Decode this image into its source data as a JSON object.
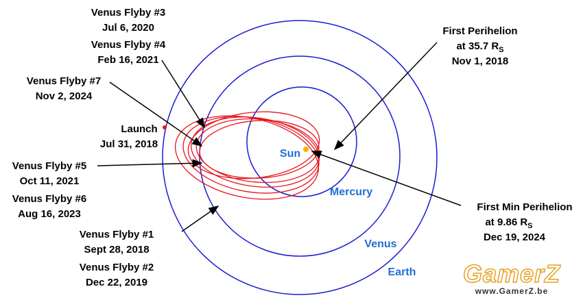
{
  "events": [
    {
      "title": "Venus Flyby #3",
      "date": "Jul 6, 2020"
    },
    {
      "title": "Venus Flyby #4",
      "date": "Feb 16, 2021"
    },
    {
      "title": "Venus Flyby #7",
      "date": "Nov 2, 2024"
    },
    {
      "title": "Launch",
      "date": "Jul 31, 2018"
    },
    {
      "title": "Venus Flyby #5",
      "date": "Oct 11, 2021"
    },
    {
      "title": "Venus Flyby #6",
      "date": "Aug 16, 2023"
    },
    {
      "title": "Venus Flyby #1",
      "date": "Sept 28, 2018"
    },
    {
      "title": "Venus Flyby #2",
      "date": "Dec 22, 2019"
    }
  ],
  "first_perihelion": {
    "title": "First Perihelion",
    "distance": "at 35.7 R",
    "subscript": "S",
    "date": "Nov 1, 2018"
  },
  "first_min_perihelion": {
    "title": "First Min Perihelion",
    "distance": "at 9.86 R",
    "subscript": "S",
    "date": "Dec 19, 2024"
  },
  "bodies": {
    "sun": "Sun",
    "mercury": "Mercury",
    "venus": "Venus",
    "earth": "Earth"
  },
  "watermark": {
    "logo": "GamerZ",
    "url": "www.GamerZ.be"
  }
}
